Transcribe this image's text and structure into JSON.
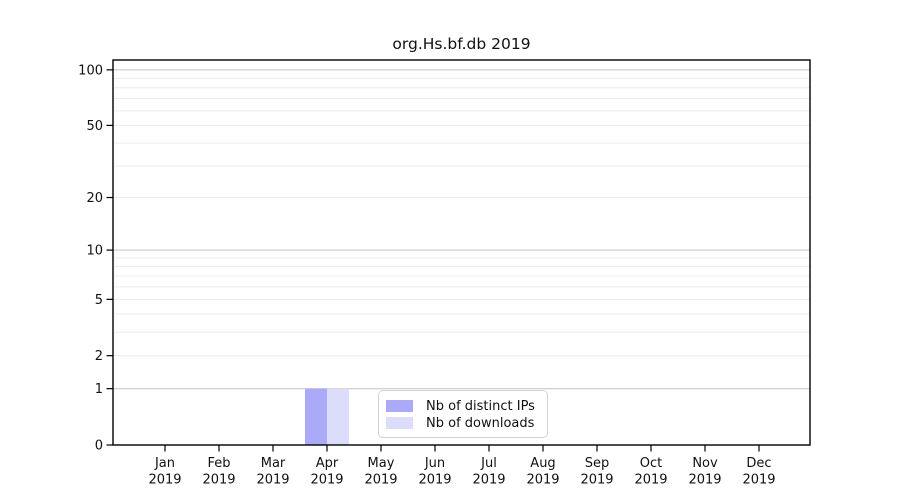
{
  "chart_data": {
    "type": "bar",
    "title": "org.Hs.bf.db 2019",
    "year_label": "2019",
    "categories": [
      "Jan",
      "Feb",
      "Mar",
      "Apr",
      "May",
      "Jun",
      "Jul",
      "Aug",
      "Sep",
      "Oct",
      "Nov",
      "Dec"
    ],
    "series": [
      {
        "name": "Nb of distinct IPs",
        "color": "#aaaaf8",
        "values": [
          0,
          0,
          0,
          1,
          0,
          0,
          0,
          0,
          0,
          0,
          0,
          0
        ]
      },
      {
        "name": "Nb of downloads",
        "color": "#dcdcfb",
        "values": [
          0,
          0,
          0,
          1,
          0,
          0,
          0,
          0,
          0,
          0,
          0,
          0
        ]
      }
    ],
    "yscale": "log1p",
    "ylim": [
      0,
      113
    ],
    "ytick_labels": [
      0,
      1,
      2,
      5,
      10,
      20,
      50,
      100
    ],
    "ygrid_major": [
      1,
      10,
      100
    ],
    "ygrid_minor": [
      2,
      3,
      4,
      5,
      6,
      7,
      8,
      9,
      20,
      30,
      40,
      50,
      60,
      70,
      80,
      90
    ],
    "grid": "horizontal",
    "legend_position": "inside-bottom-center",
    "colors": {
      "axis": "#000000",
      "text": "#111111",
      "grid_major": "#c9c9c9",
      "grid_minor": "#ececec",
      "background": "#ffffff"
    }
  },
  "legend": {
    "items": [
      {
        "label": "Nb of distinct IPs",
        "color": "#aaaaf8"
      },
      {
        "label": "Nb of downloads",
        "color": "#dcdcfb"
      }
    ]
  }
}
